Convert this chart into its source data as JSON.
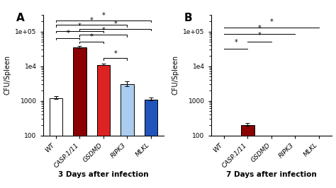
{
  "panel_A": {
    "categories": [
      "WT",
      "CASP.1/11",
      "GSDMD",
      "RIPK3",
      "MLKL"
    ],
    "values": [
      1200,
      35000,
      11000,
      3000,
      1100
    ],
    "errors": [
      150,
      3000,
      600,
      700,
      150
    ],
    "colors": [
      "#ffffff",
      "#8B0000",
      "#dd2222",
      "#aaccee",
      "#2255bb"
    ],
    "title": "3 Days after infection",
    "ylabel": "CFU/Spleen",
    "ylim": [
      100,
      300000
    ],
    "significance_bars": [
      [
        0,
        1,
        65000,
        "*"
      ],
      [
        0,
        2,
        105000,
        "*"
      ],
      [
        0,
        3,
        155000,
        "*"
      ],
      [
        0,
        4,
        210000,
        "*"
      ],
      [
        1,
        2,
        52000,
        "*"
      ],
      [
        1,
        3,
        80000,
        "*"
      ],
      [
        1,
        4,
        120000,
        "*"
      ],
      [
        2,
        3,
        17000,
        "*"
      ]
    ]
  },
  "panel_B": {
    "categories": [
      "WT",
      "CASP.1/11",
      "GSDMD",
      "RIPK3",
      "MLKL"
    ],
    "values": [
      null,
      200,
      null,
      null,
      null
    ],
    "errors": [
      null,
      25,
      null,
      null,
      null
    ],
    "colors": [
      "#ffffff",
      "#8B0000",
      "#dd2222",
      "#aaccee",
      "#2255bb"
    ],
    "title": "7 Days after infection",
    "ylabel": "CFU/Spleen",
    "ylim": [
      100,
      300000
    ],
    "significance_lines": [
      [
        0,
        1,
        32000,
        "*"
      ],
      [
        1,
        2,
        52000,
        "*"
      ],
      [
        0,
        3,
        85000,
        "*"
      ],
      [
        0,
        4,
        130000,
        "*"
      ]
    ]
  },
  "panel_label_fontsize": 11,
  "axis_label_fontsize": 7,
  "tick_fontsize": 6.5,
  "title_fontsize": 7.5,
  "sig_fontsize": 7,
  "bar_width": 0.55
}
